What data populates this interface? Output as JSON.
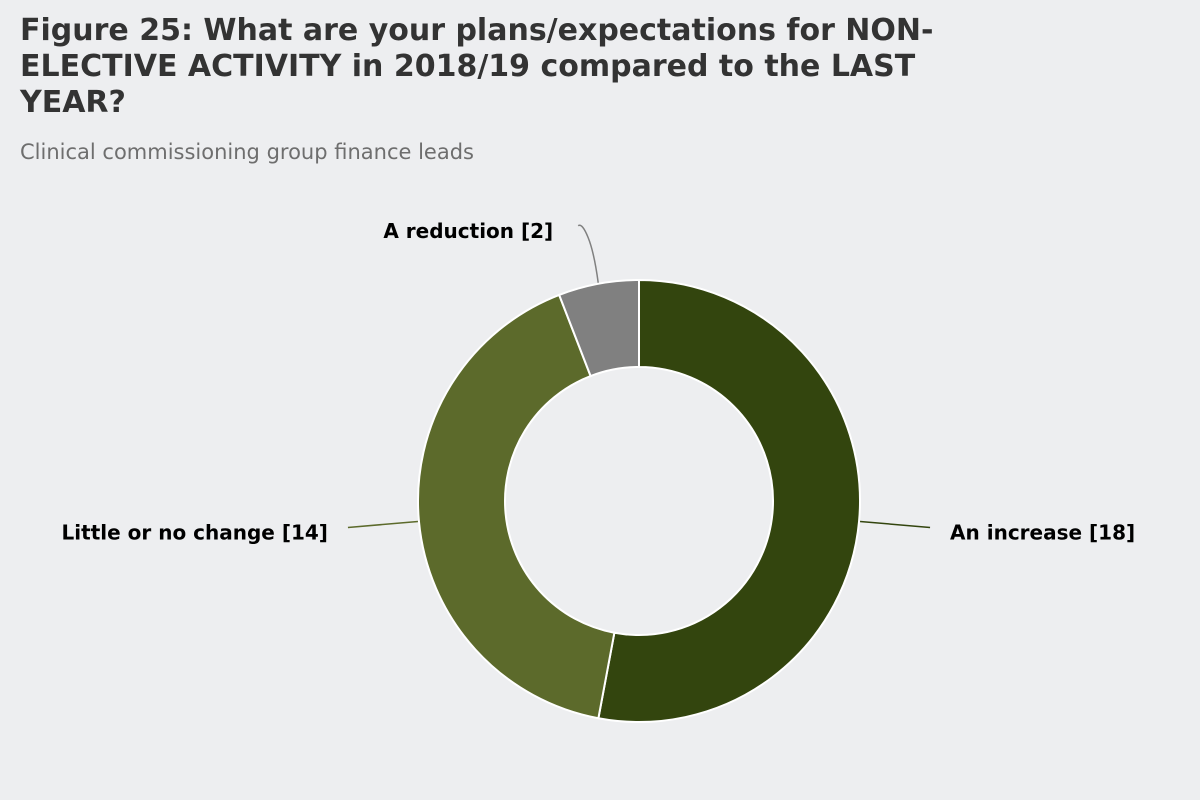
{
  "title": "Figure 25: What are your plans/expectations for NON-ELECTIVE ACTIVITY in 2018/19 compared to the LAST YEAR?",
  "subtitle": "Clinical commissioning group finance leads",
  "chart_data": {
    "type": "pie",
    "donut": true,
    "slices": [
      {
        "label": "An increase [18]",
        "value": 18,
        "color": "#33450e"
      },
      {
        "label": "Little or no change [14]",
        "value": 14,
        "color": "#5c6a2b"
      },
      {
        "label": "A reduction [2]",
        "value": 2,
        "color": "#808080"
      }
    ],
    "legend": "none"
  }
}
